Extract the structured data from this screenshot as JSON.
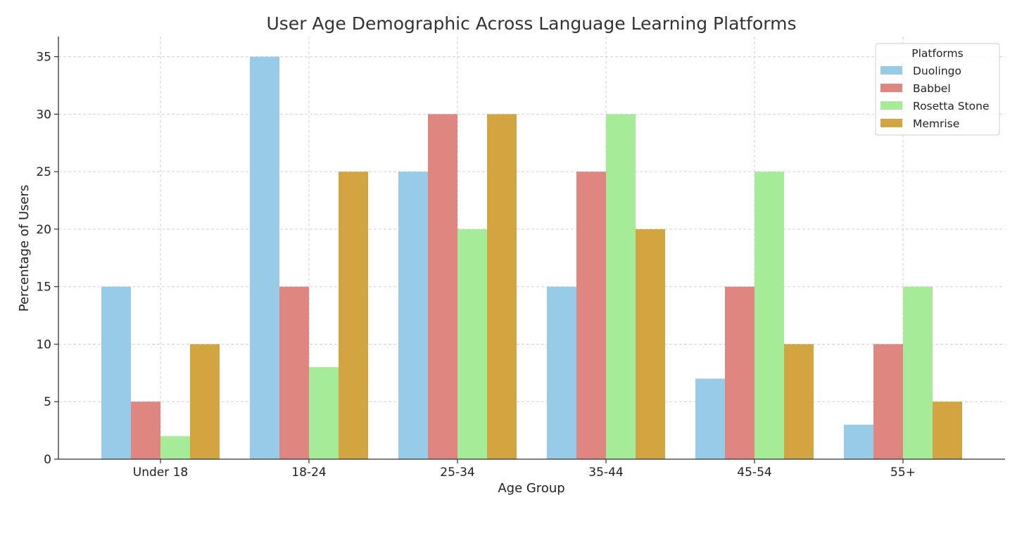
{
  "chart_data": {
    "type": "bar",
    "title": "User Age Demographic Across Language Learning Platforms",
    "xlabel": "Age Group",
    "ylabel": "Percentage of Users",
    "categories": [
      "Under 18",
      "18-24",
      "25-34",
      "35-44",
      "45-54",
      "55+"
    ],
    "series": [
      {
        "name": "Duolingo",
        "color": "#98cbe8",
        "values": [
          15,
          35,
          25,
          15,
          7,
          3
        ]
      },
      {
        "name": "Babbel",
        "color": "#e08680",
        "values": [
          5,
          15,
          30,
          25,
          15,
          10
        ]
      },
      {
        "name": "Rosetta Stone",
        "color": "#a6eb98",
        "values": [
          2,
          8,
          20,
          30,
          25,
          15
        ]
      },
      {
        "name": "Memrise",
        "color": "#d2a541",
        "values": [
          10,
          25,
          30,
          20,
          10,
          5
        ]
      }
    ],
    "ylim": [
      0,
      36.75
    ],
    "yticks": [
      0,
      5,
      10,
      15,
      20,
      25,
      30,
      35
    ],
    "grid": true,
    "legend": {
      "title": "Platforms",
      "placement": "top-right"
    }
  }
}
